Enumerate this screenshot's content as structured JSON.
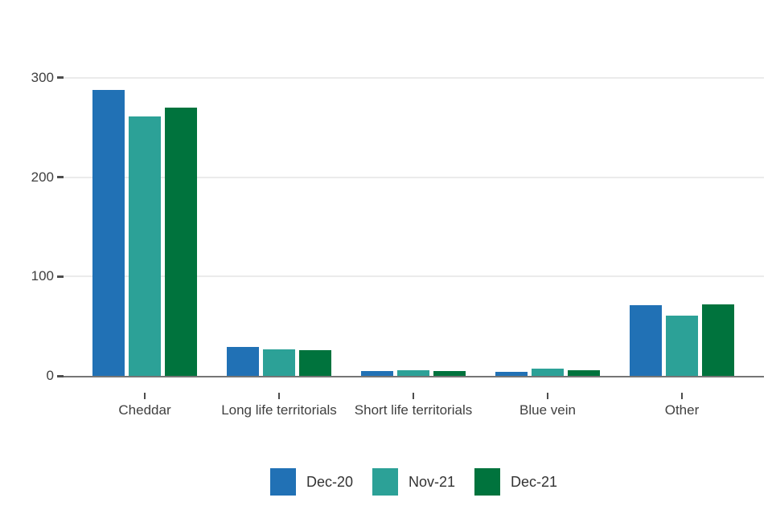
{
  "chart_data": {
    "type": "bar",
    "title": "",
    "xlabel": "",
    "ylabel": "",
    "categories": [
      "Cheddar",
      "Long life territorials",
      "Short life territorials",
      "Blue vein",
      "Other"
    ],
    "series": [
      {
        "name": "Dec-20",
        "color": "#2171b5",
        "values": [
          288,
          29,
          5,
          4,
          71
        ]
      },
      {
        "name": "Nov-21",
        "color": "#2ca197",
        "values": [
          261,
          27,
          6,
          7,
          61
        ]
      },
      {
        "name": "Dec-21",
        "color": "#00733d",
        "values": [
          270,
          26,
          5,
          6,
          72
        ]
      }
    ],
    "ylim": [
      0,
      300
    ],
    "yticks": [
      0,
      100,
      200,
      300
    ],
    "grid": "horizontal-major-only",
    "legend_position": "bottom-center"
  },
  "colors": {
    "background": "#ffffff",
    "gridline": "#ebebeb",
    "axis_line": "#757575",
    "tick_mark": "#4d4d4d",
    "axis_text": "#404040",
    "legend_text": "#333333"
  }
}
